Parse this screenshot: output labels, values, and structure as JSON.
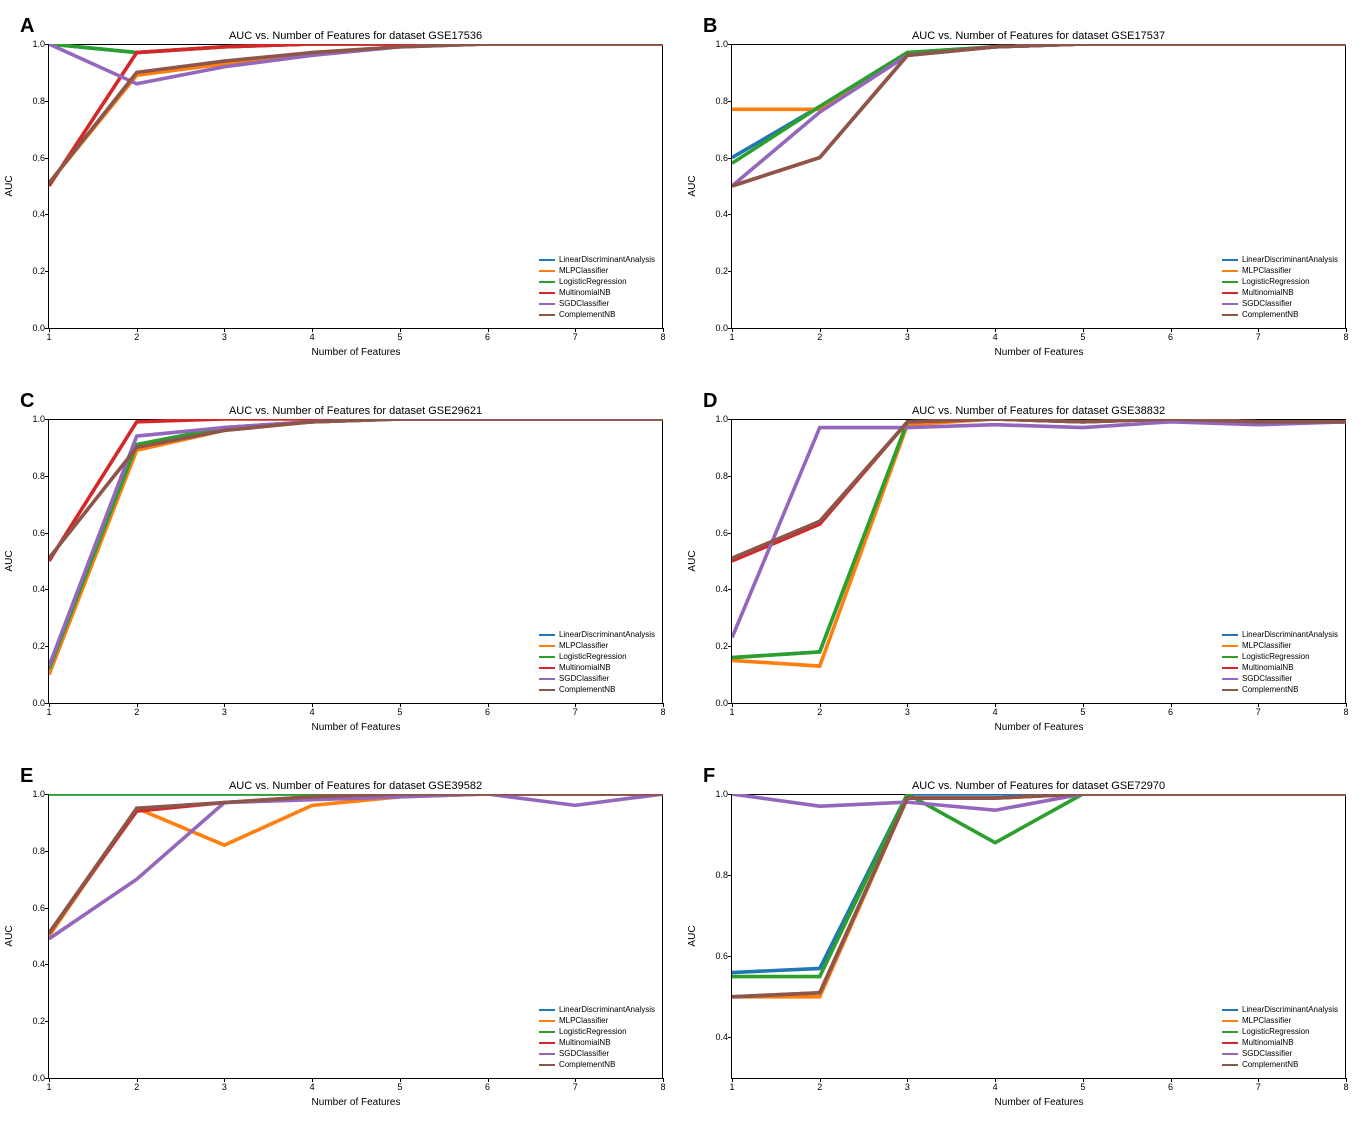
{
  "global": {
    "ylabel": "AUC",
    "xlabel": "Number of Features",
    "xlim": [
      1,
      8
    ],
    "xticks": [
      1,
      2,
      3,
      4,
      5,
      6,
      7,
      8
    ],
    "background_color": "#ffffff",
    "axis_color": "#000000",
    "tick_fontsize": 9,
    "label_fontsize": 10,
    "title_fontsize": 11,
    "panel_label_fontsize": 20,
    "line_width": 1.2,
    "legend_fontsize": 8,
    "series_names": [
      "LinearDiscriminantAnalysis",
      "MLPClassifier",
      "LogisticRegression",
      "MultinomialNB",
      "SGDClassifier",
      "ComplementNB"
    ],
    "series_colors": {
      "LinearDiscriminantAnalysis": "#1f77b4",
      "MLPClassifier": "#ff7f0e",
      "LogisticRegression": "#2ca02c",
      "MultinomialNB": "#d62728",
      "SGDClassifier": "#9467bd",
      "ComplementNB": "#8c564b"
    }
  },
  "panels": [
    {
      "label": "A",
      "title": "AUC vs. Number of Features for dataset GSE17536",
      "ylim": [
        0.0,
        1.0
      ],
      "yticks": [
        0.0,
        0.2,
        0.4,
        0.6,
        0.8,
        1.0
      ],
      "x": [
        1,
        2,
        3,
        4,
        5,
        6,
        7,
        8
      ],
      "series": {
        "LinearDiscriminantAnalysis": [
          1.0,
          0.97,
          0.99,
          1.0,
          1.0,
          1.0,
          1.0,
          1.0
        ],
        "MLPClassifier": [
          0.51,
          0.89,
          0.93,
          0.97,
          0.99,
          1.0,
          1.0,
          1.0
        ],
        "LogisticRegression": [
          1.0,
          0.97,
          0.99,
          1.0,
          1.0,
          1.0,
          1.0,
          1.0
        ],
        "MultinomialNB": [
          0.5,
          0.97,
          0.99,
          1.0,
          1.0,
          1.0,
          1.0,
          1.0
        ],
        "SGDClassifier": [
          1.0,
          0.86,
          0.92,
          0.96,
          0.99,
          1.0,
          1.0,
          1.0
        ],
        "ComplementNB": [
          0.51,
          0.9,
          0.94,
          0.97,
          0.99,
          1.0,
          1.0,
          1.0
        ]
      }
    },
    {
      "label": "B",
      "title": "AUC vs. Number of Features for dataset GSE17537",
      "ylim": [
        0.0,
        1.0
      ],
      "yticks": [
        0.0,
        0.2,
        0.4,
        0.6,
        0.8,
        1.0
      ],
      "x": [
        1,
        2,
        3,
        4,
        5,
        6,
        7,
        8
      ],
      "series": {
        "LinearDiscriminantAnalysis": [
          0.6,
          0.78,
          0.97,
          0.99,
          1.0,
          1.0,
          1.0,
          1.0
        ],
        "MLPClassifier": [
          0.77,
          0.77,
          0.96,
          0.99,
          1.0,
          1.0,
          1.0,
          1.0
        ],
        "LogisticRegression": [
          0.58,
          0.78,
          0.97,
          0.99,
          1.0,
          1.0,
          1.0,
          1.0
        ],
        "MultinomialNB": [
          0.5,
          0.6,
          0.96,
          0.99,
          1.0,
          1.0,
          1.0,
          1.0
        ],
        "SGDClassifier": [
          0.5,
          0.76,
          0.96,
          0.99,
          1.0,
          1.0,
          1.0,
          1.0
        ],
        "ComplementNB": [
          0.5,
          0.6,
          0.96,
          0.99,
          1.0,
          1.0,
          1.0,
          1.0
        ]
      }
    },
    {
      "label": "C",
      "title": "AUC vs. Number of Features for dataset GSE29621",
      "ylim": [
        0.0,
        1.0
      ],
      "yticks": [
        0.0,
        0.2,
        0.4,
        0.6,
        0.8,
        1.0
      ],
      "x": [
        1,
        2,
        3,
        4,
        5,
        6,
        7,
        8
      ],
      "series": {
        "LinearDiscriminantAnalysis": [
          0.12,
          0.91,
          0.97,
          0.99,
          1.0,
          1.0,
          1.0,
          1.0
        ],
        "MLPClassifier": [
          0.1,
          0.89,
          0.96,
          0.99,
          1.0,
          1.0,
          1.0,
          1.0
        ],
        "LogisticRegression": [
          0.12,
          0.91,
          0.97,
          0.99,
          1.0,
          1.0,
          1.0,
          1.0
        ],
        "MultinomialNB": [
          0.5,
          0.99,
          1.0,
          1.0,
          1.0,
          1.0,
          1.0,
          1.0
        ],
        "SGDClassifier": [
          0.13,
          0.94,
          0.97,
          0.99,
          1.0,
          1.0,
          1.0,
          1.0
        ],
        "ComplementNB": [
          0.51,
          0.9,
          0.96,
          0.99,
          1.0,
          1.0,
          1.0,
          1.0
        ]
      }
    },
    {
      "label": "D",
      "title": "AUC vs. Number of Features for dataset GSE38832",
      "ylim": [
        0.0,
        1.0
      ],
      "yticks": [
        0.0,
        0.2,
        0.4,
        0.6,
        0.8,
        1.0
      ],
      "x": [
        1,
        2,
        3,
        4,
        5,
        6,
        7,
        8
      ],
      "series": {
        "LinearDiscriminantAnalysis": [
          0.16,
          0.18,
          0.99,
          1.0,
          0.99,
          1.0,
          0.99,
          0.99
        ],
        "MLPClassifier": [
          0.15,
          0.13,
          0.98,
          1.0,
          0.99,
          1.0,
          0.99,
          0.99
        ],
        "LogisticRegression": [
          0.16,
          0.18,
          0.99,
          1.0,
          0.99,
          1.0,
          0.99,
          0.99
        ],
        "MultinomialNB": [
          0.5,
          0.63,
          0.99,
          1.0,
          0.99,
          1.0,
          0.99,
          0.99
        ],
        "SGDClassifier": [
          0.23,
          0.97,
          0.97,
          0.98,
          0.97,
          0.99,
          0.98,
          0.99
        ],
        "ComplementNB": [
          0.51,
          0.64,
          0.99,
          1.0,
          0.99,
          1.0,
          0.99,
          0.99
        ]
      }
    },
    {
      "label": "E",
      "title": "AUC vs. Number of Features for dataset GSE39582",
      "ylim": [
        0.0,
        1.0
      ],
      "yticks": [
        0.0,
        0.2,
        0.4,
        0.6,
        0.8,
        1.0
      ],
      "x": [
        1,
        2,
        3,
        4,
        5,
        6,
        7,
        8
      ],
      "series": {
        "LinearDiscriminantAnalysis": [
          1.0,
          1.0,
          1.0,
          1.0,
          1.0,
          1.0,
          1.0,
          1.0
        ],
        "MLPClassifier": [
          0.5,
          0.95,
          0.82,
          0.96,
          0.99,
          1.0,
          1.0,
          1.0
        ],
        "LogisticRegression": [
          1.0,
          1.0,
          1.0,
          1.0,
          1.0,
          1.0,
          1.0,
          1.0
        ],
        "MultinomialNB": [
          0.51,
          0.94,
          0.97,
          0.99,
          1.0,
          1.0,
          1.0,
          1.0
        ],
        "SGDClassifier": [
          0.49,
          0.7,
          0.97,
          0.98,
          0.99,
          1.0,
          0.96,
          1.0
        ],
        "ComplementNB": [
          0.51,
          0.95,
          0.97,
          0.99,
          1.0,
          1.0,
          1.0,
          1.0
        ]
      }
    },
    {
      "label": "F",
      "title": "AUC vs. Number of Features for dataset GSE72970",
      "ylim": [
        0.3,
        1.0
      ],
      "yticks": [
        0.4,
        0.6,
        0.8,
        1.0
      ],
      "x": [
        1,
        2,
        3,
        4,
        5,
        6,
        7,
        8
      ],
      "series": {
        "LinearDiscriminantAnalysis": [
          0.56,
          0.57,
          1.0,
          1.0,
          1.0,
          1.0,
          1.0,
          1.0
        ],
        "MLPClassifier": [
          0.5,
          0.5,
          0.99,
          0.99,
          1.0,
          1.0,
          1.0,
          1.0
        ],
        "LogisticRegression": [
          0.55,
          0.55,
          1.0,
          0.88,
          1.0,
          1.0,
          1.0,
          1.0
        ],
        "MultinomialNB": [
          0.5,
          0.51,
          0.99,
          0.99,
          1.0,
          1.0,
          1.0,
          1.0
        ],
        "SGDClassifier": [
          1.0,
          0.97,
          0.98,
          0.96,
          1.0,
          1.0,
          1.0,
          1.0
        ],
        "ComplementNB": [
          0.5,
          0.51,
          0.99,
          0.99,
          1.0,
          1.0,
          1.0,
          1.0
        ]
      }
    }
  ]
}
